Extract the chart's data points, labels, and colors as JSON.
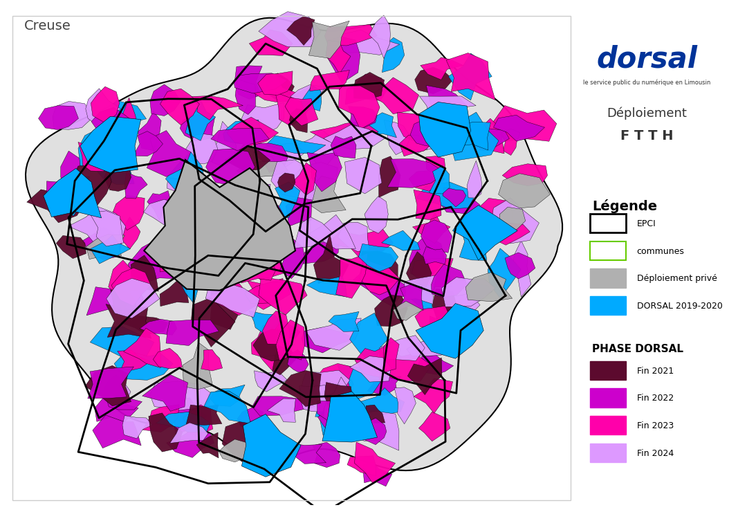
{
  "title_map": "Creuse",
  "title_right1": "Déploiement",
  "title_right2": "F T T H",
  "subtitle_logo": "le service public du numérique en Limousin",
  "logo_text": "dorsal",
  "legend_title": "Légende",
  "legend_items": [
    {
      "label": "EPCI",
      "facecolor": "white",
      "edgecolor": "black",
      "linewidth": 2.0
    },
    {
      "label": "communes",
      "facecolor": "white",
      "edgecolor": "#66cc00",
      "linewidth": 1.5
    },
    {
      "label": "Déploiement privé",
      "facecolor": "#b0b0b0",
      "edgecolor": "#b0b0b0",
      "linewidth": 1.0
    },
    {
      "label": "DORSAL 2019-2020",
      "facecolor": "#00aaff",
      "edgecolor": "#00aaff",
      "linewidth": 1.0
    }
  ],
  "phase_title": "PHASE DORSAL",
  "phase_items": [
    {
      "label": "Fin 2021",
      "facecolor": "#5c0a2e",
      "edgecolor": "#5c0a2e"
    },
    {
      "label": "Fin 2022",
      "facecolor": "#cc00cc",
      "edgecolor": "#cc00cc"
    },
    {
      "label": "Fin 2023",
      "facecolor": "#ff00aa",
      "edgecolor": "#ff00aa"
    },
    {
      "label": "Fin 2024",
      "facecolor": "#dd99ff",
      "edgecolor": "#dd99ff"
    }
  ],
  "map_bg": "#ffffff",
  "panel_bg": "#ffffff",
  "border_color": "#cccccc",
  "map_colors": {
    "dark_purple": "#5c0a2e",
    "magenta": "#cc00cc",
    "hot_pink": "#ff00aa",
    "light_purple": "#dd99ff",
    "cyan": "#00aaff",
    "gray": "#b0b0b0"
  }
}
